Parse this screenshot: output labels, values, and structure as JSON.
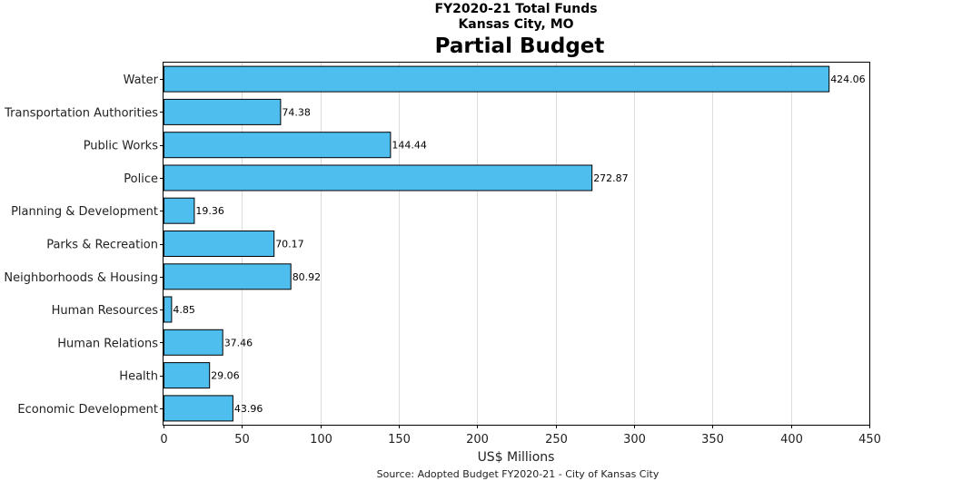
{
  "chart_data": {
    "type": "bar",
    "orientation": "horizontal",
    "suptitle_line1": "FY2020-21 Total Funds",
    "suptitle_line2": "Kansas City, MO",
    "title": "Partial Budget",
    "xlabel": "US$ Millions",
    "source": "Source: Adopted Budget FY2020-21 - City of Kansas City",
    "xlim": [
      0,
      450
    ],
    "xticks": [
      0,
      50,
      100,
      150,
      200,
      250,
      300,
      350,
      400,
      450
    ],
    "grid": "vertical",
    "categories": [
      "Water",
      "Transportation Authorities",
      "Public Works",
      "Police",
      "Planning & Development",
      "Parks & Recreation",
      "Neighborhoods & Housing",
      "Human Resources",
      "Human Relations",
      "Health",
      "Economic Development"
    ],
    "values": [
      424.06,
      74.38,
      144.44,
      272.87,
      19.36,
      70.17,
      80.92,
      4.85,
      37.46,
      29.06,
      43.96
    ],
    "data_labels": [
      "424.06",
      "74.38",
      "144.44",
      "272.87",
      "19.36",
      "70.17",
      "80.92",
      "4.85",
      "37.46",
      "29.06",
      "43.96"
    ],
    "bar_color": "#4dbeee",
    "bar_edge_color": "#000000"
  }
}
